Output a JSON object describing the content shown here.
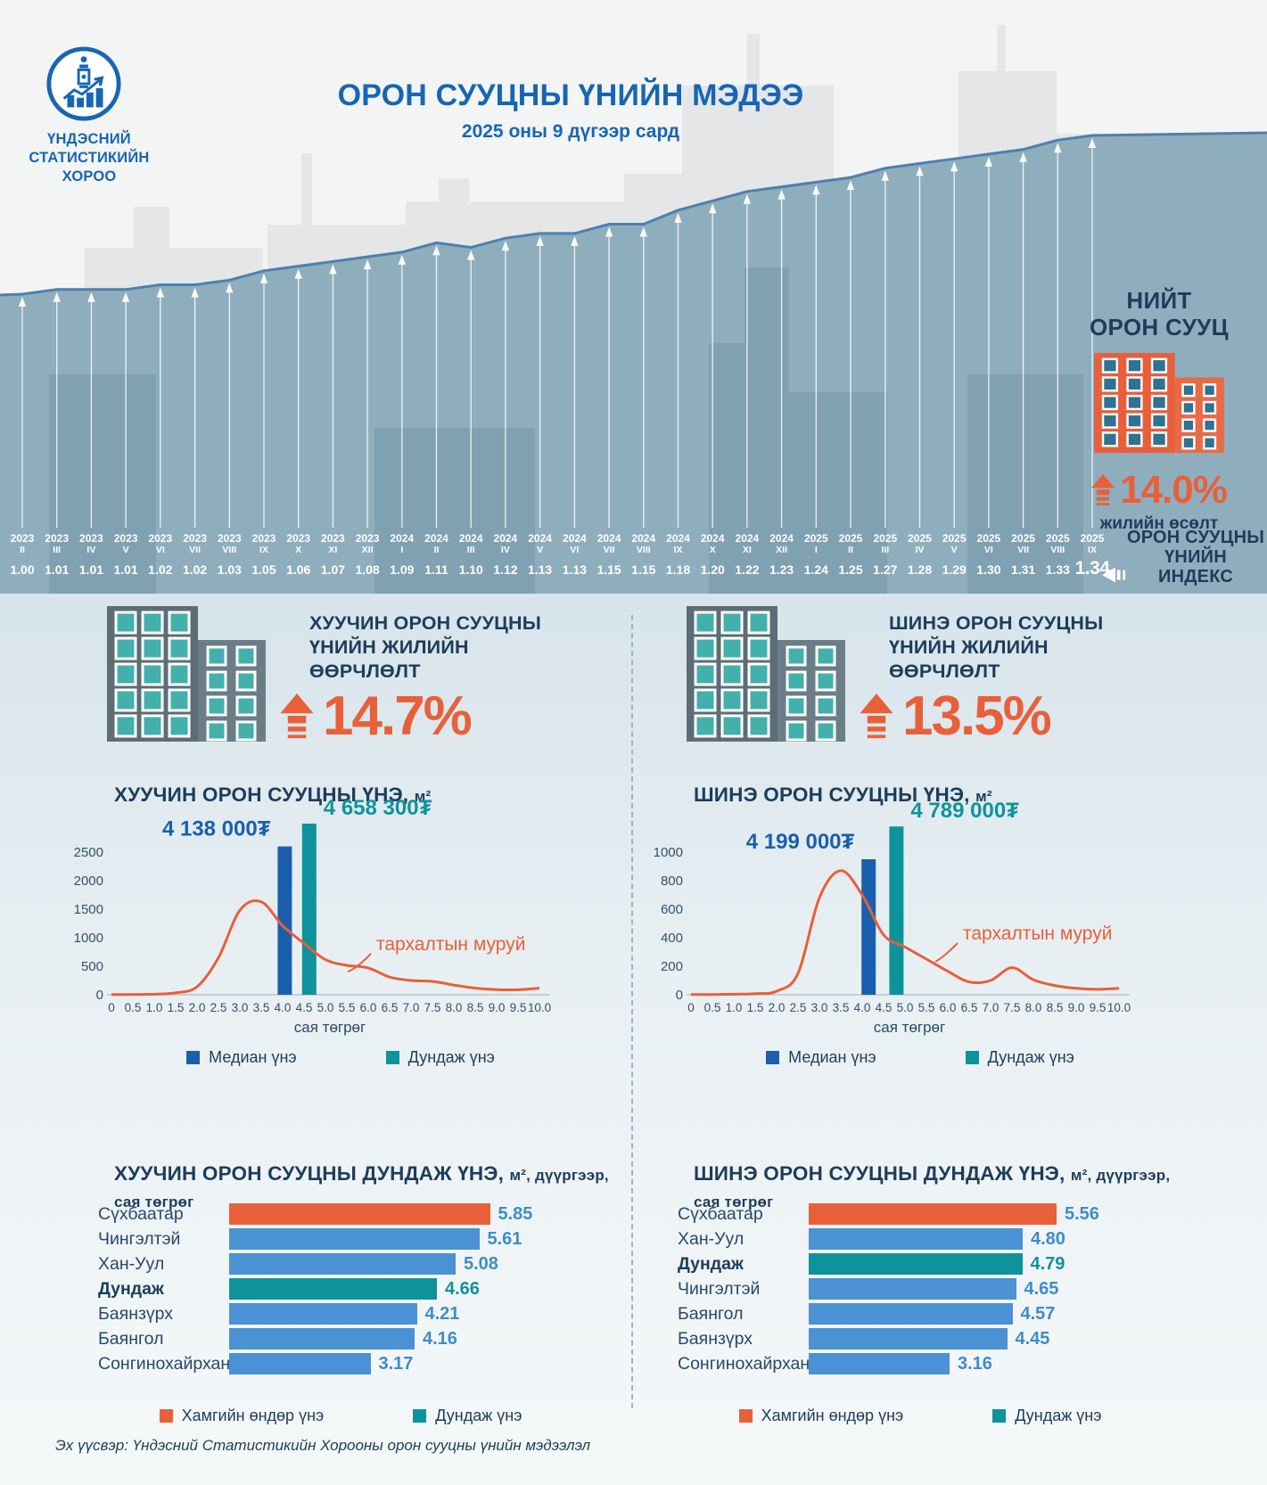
{
  "header": {
    "org_lines": [
      "ҮНДЭСНИЙ",
      "СТАТИСТИКИЙН",
      "ХОРОО"
    ],
    "title": "ОРОН СУУЦНЫ ҮНИЙН МЭДЭЭ",
    "subtitle": "2025 оны 9 дүгээр сард"
  },
  "total": {
    "label_lines": [
      "НИЙТ",
      "ОРОН СУУЦ"
    ],
    "growth": "14.0%",
    "growth_caption": "жилийн өсөлт"
  },
  "index_title_lines": [
    "ОРОН СУУЦНЫ",
    "ҮНИЙН",
    "ИНДЕКС"
  ],
  "old_section": {
    "change_title_lines": [
      "ХУУЧИН ОРОН СУУЦНЫ",
      "ҮНИЙН ЖИЛИЙН",
      "ӨӨРЧЛӨЛТ"
    ],
    "change_value": "14.7%",
    "dist_title": "ХУУЧИН ОРОН СУУЦНЫ ҮНЭ,",
    "dist_title_suffix": "м²",
    "legend_median": "Медиан үнэ",
    "legend_mean": "Дундаж үнэ",
    "bars_title": "ХУУЧИН ОРОН СУУЦНЫ ДУНДАЖ ҮНЭ,",
    "bars_title_suffix": "м², дүүргээр,",
    "bars_title_line2": "сая төгрөг",
    "legend_max": "Хамгийн өндөр үнэ",
    "legend_avg": "Дундаж үнэ"
  },
  "new_section": {
    "change_title_lines": [
      "ШИНЭ ОРОН СУУЦНЫ",
      "ҮНИЙН ЖИЛИЙН",
      "ӨӨРЧЛӨЛТ"
    ],
    "change_value": "13.5%",
    "dist_title": "ШИНЭ ОРОН СУУЦНЫ ҮНЭ,",
    "dist_title_suffix": "м²",
    "legend_median": "Медиан үнэ",
    "legend_mean": "Дундаж үнэ",
    "bars_title": "ШИНЭ ОРОН СУУЦНЫ ДУНДАЖ ҮНЭ,",
    "bars_title_suffix": "м², дүүргээр,",
    "bars_title_line2": "сая төгрөг",
    "legend_max": "Хамгийн өндөр үнэ",
    "legend_avg": "Дундаж үнэ"
  },
  "footer": {
    "source": "Эх үүсвэр: Үндэсний Статистикийн Хорооны орон сууцны үнийн мэдээлэл"
  },
  "colors": {
    "orange": "#E8603A",
    "blue_bar": "#4A92D3",
    "teal": "#0E939B",
    "median_blue": "#1A5FAD",
    "navy": "#1C3D5B",
    "title_blue": "#1766B4",
    "line_blue": "#4E7FAE",
    "area_fill": "#8FAEBD",
    "value_blue": "#3E8CCB",
    "curve_orange": "#E85F38"
  },
  "chart_data": [
    {
      "type": "area",
      "title": "ОРОН СУУЦНЫ ҮНИЙН ИНДЕКС",
      "categories": [
        "2023-II",
        "2023-III",
        "2023-IV",
        "2023-V",
        "2023-VI",
        "2023-VII",
        "2023-VIII",
        "2023-IX",
        "2023-X",
        "2023-XI",
        "2023-XII",
        "2024-I",
        "2024-II",
        "2024-III",
        "2024-IV",
        "2024-V",
        "2024-VI",
        "2024-VII",
        "2024-VIII",
        "2024-IX",
        "2024-X",
        "2024-XI",
        "2024-XII",
        "2025-I",
        "2025-II",
        "2025-III",
        "2025-IV",
        "2025-V",
        "2025-VI",
        "2025-VII",
        "2025-VIII",
        "2025-IX"
      ],
      "values": [
        "1.00",
        "1.01",
        "1.01",
        "1.01",
        "1.02",
        "1.02",
        "1.03",
        "1.05",
        "1.06",
        "1.07",
        "1.08",
        "1.09",
        "1.11",
        "1.10",
        "1.12",
        "1.13",
        "1.13",
        "1.15",
        "1.15",
        "1.18",
        "1.20",
        "1.22",
        "1.23",
        "1.24",
        "1.25",
        "1.27",
        "1.28",
        "1.29",
        "1.30",
        "1.31",
        "1.33",
        "1.34"
      ],
      "ylim": [
        1.0,
        1.34
      ],
      "legend_position": "none",
      "grid": false
    },
    {
      "type": "line",
      "title": "ХУУЧИН ОРОН СУУЦНЫ ҮНЭ, м²",
      "xlabel": "сая төгрөг",
      "ylim": [
        0,
        2500
      ],
      "yticks": [
        0,
        500,
        1000,
        1500,
        2000,
        2500
      ],
      "xticks": [
        "0",
        "0.5",
        "1.0",
        "1.5",
        "2.0",
        "2.5",
        "3.0",
        "3.5",
        "4.0",
        "4.5",
        "5.0",
        "5.5",
        "6.0",
        "6.5",
        "7.0",
        "7.5",
        "8.0",
        "8.5",
        "9.0",
        "9.5",
        "10.0"
      ],
      "x": [
        0,
        0.5,
        1,
        1.5,
        2,
        2.5,
        3,
        3.5,
        4,
        4.5,
        5,
        5.5,
        6,
        6.5,
        7,
        7.5,
        8,
        8.5,
        9,
        9.5,
        10
      ],
      "curve": [
        5,
        5,
        10,
        35,
        140,
        650,
        1480,
        1630,
        1210,
        900,
        615,
        515,
        470,
        310,
        250,
        235,
        170,
        115,
        90,
        88,
        115
      ],
      "curve_label": "тархалтын муруй",
      "median": {
        "label": "4 138 000₮",
        "x": 4.05,
        "peak": 2600
      },
      "mean": {
        "label": "4 658 300₮",
        "x": 4.62,
        "peak": 3000
      },
      "legend": [
        "Медиан үнэ",
        "Дундаж үнэ"
      ]
    },
    {
      "type": "line",
      "title": "ШИНЭ ОРОН СУУЦНЫ ҮНЭ, м²",
      "xlabel": "сая төгрөг",
      "ylim": [
        0,
        1000
      ],
      "yticks": [
        0,
        200,
        400,
        600,
        800,
        1000
      ],
      "xticks": [
        "0",
        "0.5",
        "1.0",
        "1.5",
        "2.0",
        "2.5",
        "3.0",
        "3.5",
        "4.0",
        "4.5",
        "5.0",
        "5.5",
        "6.0",
        "6.5",
        "7.0",
        "7.5",
        "8.0",
        "8.5",
        "9.0",
        "9.5",
        "10.0"
      ],
      "x": [
        0,
        0.5,
        1,
        1.5,
        2,
        2.5,
        3,
        3.5,
        4,
        4.5,
        5,
        5.5,
        6,
        6.5,
        7,
        7.5,
        8,
        8.5,
        9,
        9.5,
        10
      ],
      "curve": [
        2,
        2,
        4,
        8,
        25,
        150,
        680,
        870,
        700,
        420,
        335,
        250,
        165,
        90,
        100,
        190,
        105,
        65,
        45,
        38,
        45
      ],
      "curve_label": "тархалтын муруй",
      "median": {
        "label": "4 199 000₮",
        "x": 4.15,
        "peak": 950
      },
      "mean": {
        "label": "4 789 000₮",
        "x": 4.8,
        "peak": 1180
      },
      "legend": [
        "Медиан үнэ",
        "Дундаж үнэ"
      ]
    },
    {
      "type": "bar",
      "title": "ХУУЧИН ОРОН СУУЦНЫ ДУНДАЖ ҮНЭ, м², дүүргээр, сая төгрөг",
      "rows": [
        {
          "name": "Сүхбаатар",
          "value": "5.85",
          "role": "max"
        },
        {
          "name": "Чингэлтэй",
          "value": "5.61",
          "role": "district"
        },
        {
          "name": "Хан-Уул",
          "value": "5.08",
          "role": "district"
        },
        {
          "name": "Дундаж",
          "value": "4.66",
          "role": "avg"
        },
        {
          "name": "Баянзүрх",
          "value": "4.21",
          "role": "district"
        },
        {
          "name": "Баянгол",
          "value": "4.16",
          "role": "district"
        },
        {
          "name": "Сонгинохайрхан",
          "value": "3.17",
          "role": "district"
        }
      ]
    },
    {
      "type": "bar",
      "title": "ШИНЭ ОРОН СУУЦНЫ ДУНДАЖ ҮНЭ, м², дүүргээр, сая төгрөг",
      "rows": [
        {
          "name": "Сүхбаатар",
          "value": "5.56",
          "role": "max"
        },
        {
          "name": "Хан-Уул",
          "value": "4.80",
          "role": "district"
        },
        {
          "name": "Дундаж",
          "value": "4.79",
          "role": "avg"
        },
        {
          "name": "Чингэлтэй",
          "value": "4.65",
          "role": "district"
        },
        {
          "name": "Баянгол",
          "value": "4.57",
          "role": "district"
        },
        {
          "name": "Баянзүрх",
          "value": "4.45",
          "role": "district"
        },
        {
          "name": "Сонгинохайрхан",
          "value": "3.16",
          "role": "district"
        }
      ]
    }
  ]
}
